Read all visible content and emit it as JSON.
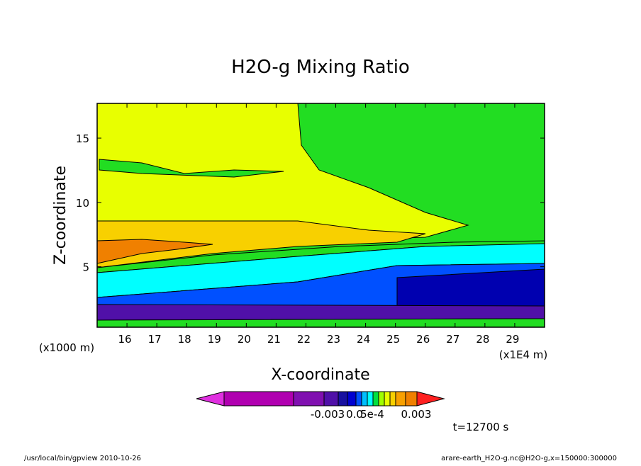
{
  "chart_data": {
    "type": "contour",
    "title": "H2O-g Mixing Ratio",
    "x_label": "X-coordinate",
    "y_label": "Z-coordinate",
    "x_unit_label": "(x1E4 m)",
    "y_unit_label": "(x1000 m)",
    "xlim": [
      15,
      30
    ],
    "xticks": [
      16,
      17,
      18,
      19,
      20,
      21,
      22,
      23,
      24,
      25,
      26,
      27,
      28,
      29
    ],
    "ylim": [
      0.3,
      17.7
    ],
    "yticks": [
      5,
      10,
      15
    ],
    "colorbar_colors": [
      "#e030e0",
      "#b000b0",
      "#8010b0",
      "#5010a8",
      "#1810a0",
      "#0000d0",
      "#0050ff",
      "#00c0ff",
      "#00ffff",
      "#00e040",
      "#a0ff00",
      "#e8ff00",
      "#f8d000",
      "#f8a000",
      "#f08000",
      "#ff2020"
    ],
    "colorbar_labels": [
      "-0.003",
      "0.0",
      "5e-4",
      "0.003"
    ],
    "time_label": "t=12700 s",
    "footer_left": "/usr/local/bin/gpview  2010-10-26",
    "footer_right": "arare-earth_H2O-g.nc@H2O-g,x=150000:300000"
  }
}
